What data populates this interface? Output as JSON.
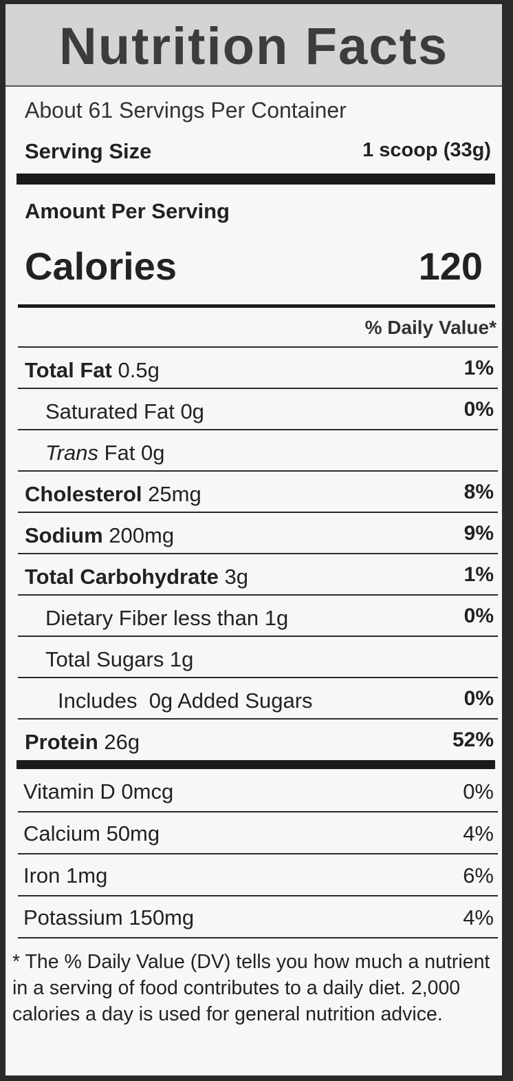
{
  "title": "Nutrition Facts",
  "servings_per_container": "About 61 Servings Per Container",
  "serving_size": {
    "label": "Serving Size",
    "value": "1 scoop (33g)"
  },
  "amount_per_serving": "Amount Per Serving",
  "calories": {
    "label": "Calories",
    "value": "120"
  },
  "daily_value_header": "% Daily Value*",
  "nutrients": [
    {
      "name": "Total Fat",
      "amount": " 0.5g",
      "dv": "1%"
    },
    {
      "name": "Saturated Fat 0g",
      "dv": "0%"
    },
    {
      "name_italic": "Trans",
      "name_rest": " Fat 0g",
      "dv": ""
    },
    {
      "name": "Cholesterol",
      "amount": " 25mg",
      "dv": "8%"
    },
    {
      "name": "Sodium",
      "amount": " 200mg",
      "dv": "9%"
    },
    {
      "name": "Total Carbohydrate",
      "amount": " 3g",
      "dv": "1%"
    },
    {
      "name": "Dietary Fiber less than 1g",
      "dv": "0%"
    },
    {
      "name": "Total Sugars 1g",
      "dv": ""
    },
    {
      "name": "Includes  0g Added Sugars",
      "dv": "0%"
    },
    {
      "name": "Protein",
      "amount": " 26g",
      "dv": "52%"
    }
  ],
  "vitamins": [
    {
      "name": "Vitamin D 0mcg",
      "dv": "0%"
    },
    {
      "name": "Calcium 50mg",
      "dv": "4%"
    },
    {
      "name": "Iron 1mg",
      "dv": "6%"
    },
    {
      "name": "Potassium 150mg",
      "dv": "4%"
    }
  ],
  "footnote": "* The % Daily Value (DV) tells you how much a nutrient in a serving of food contributes to a daily diet. 2,000 calories a day is used for general nutrition advice."
}
